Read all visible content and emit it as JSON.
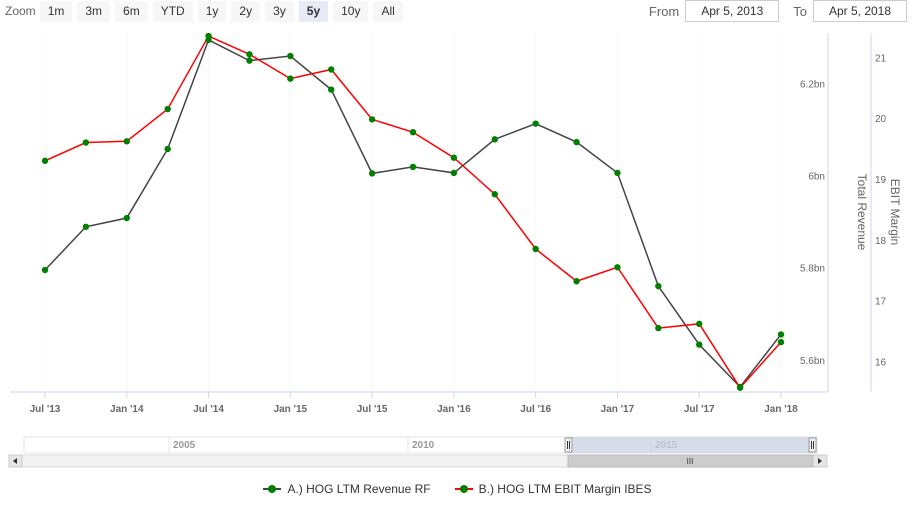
{
  "range_selector": {
    "zoom_label": "Zoom",
    "buttons": [
      "1m",
      "3m",
      "6m",
      "YTD",
      "1y",
      "2y",
      "3y",
      "5y",
      "10y",
      "All"
    ],
    "selected": "5y",
    "from_label": "From",
    "from_value": "Apr 5, 2013",
    "to_label": "To",
    "to_value": "Apr 5, 2018"
  },
  "navigator": {
    "labels": [
      "2005",
      "2010",
      "2015"
    ],
    "scroll_grip": "III"
  },
  "colors": {
    "revenue": "#434348",
    "ebit": "#ff0000",
    "marker": "#008000",
    "navigator_mask": "#c8d0e0"
  },
  "chart_data": {
    "type": "line",
    "x_ticks": [
      "Jul '13",
      "Jan '14",
      "Jul '14",
      "Jan '15",
      "Jul '15",
      "Jan '16",
      "Jul '16",
      "Jan '17",
      "Jul '17",
      "Jan '18"
    ],
    "x": [
      "2013-06-30",
      "2013-09-30",
      "2013-12-31",
      "2014-03-31",
      "2014-06-30",
      "2014-09-30",
      "2014-12-31",
      "2015-03-31",
      "2015-06-30",
      "2015-09-30",
      "2015-12-31",
      "2016-03-31",
      "2016-06-30",
      "2016-09-30",
      "2016-12-31",
      "2017-03-31",
      "2017-06-30",
      "2017-09-30",
      "2017-12-31"
    ],
    "series": [
      {
        "name": "A.) HOG LTM Revenue RF",
        "axis": "Total Revenue",
        "values": [
          5.795,
          5.889,
          5.908,
          6.058,
          6.295,
          6.25,
          6.26,
          6.187,
          6.005,
          6.019,
          6.006,
          6.079,
          6.113,
          6.073,
          6.006,
          5.76,
          5.633,
          5.541,
          5.655
        ]
      },
      {
        "name": "B.) HOG LTM EBIT Margin IBES",
        "axis": "EBIT Margin",
        "values": [
          19.3,
          19.6,
          19.62,
          20.15,
          21.35,
          21.05,
          20.65,
          20.8,
          19.98,
          19.77,
          19.35,
          18.75,
          17.85,
          17.32,
          17.55,
          16.55,
          16.62,
          15.57,
          16.32
        ]
      }
    ],
    "y_axis_left": {
      "label": "Total Revenue",
      "ticks": [
        "5.6bn",
        "5.8bn",
        "6bn",
        "6.2bn"
      ],
      "ylim": [
        5.53,
        6.31
      ]
    },
    "y_axis_right": {
      "label": "EBIT Margin",
      "ticks": [
        "16",
        "17",
        "18",
        "19",
        "20",
        "21"
      ],
      "ylim": [
        15.5,
        21.4
      ]
    },
    "grid": "vertical dotted",
    "legend_position": "bottom"
  }
}
